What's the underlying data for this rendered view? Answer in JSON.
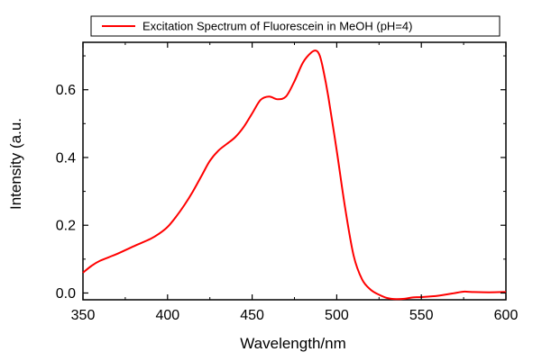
{
  "chart_data": {
    "type": "line",
    "title": "",
    "xlabel": "Wavelength/nm",
    "ylabel": "Intensity (a.u.",
    "xlim": [
      350,
      600
    ],
    "ylim": [
      -0.02,
      0.74
    ],
    "xticks": [
      350,
      400,
      450,
      500,
      550,
      600
    ],
    "xtick_labels": [
      "350",
      "400",
      "450",
      "500",
      "550",
      "600"
    ],
    "yticks": [
      0.0,
      0.2,
      0.4,
      0.6
    ],
    "ytick_labels": [
      "0.0",
      "0.2",
      "0.4",
      "0.6"
    ],
    "grid": false,
    "legend": {
      "position": "top",
      "entries": [
        "Excitation Spectrum of Fluorescein in MeOH (pH=4)"
      ]
    },
    "series": [
      {
        "name": "Excitation Spectrum of Fluorescein in MeOH (pH=4)",
        "color": "#ff0000",
        "x": [
          350,
          355,
          360,
          370,
          380,
          390,
          395,
          400,
          405,
          410,
          415,
          420,
          425,
          430,
          435,
          440,
          445,
          450,
          455,
          460,
          465,
          470,
          475,
          480,
          485,
          488,
          490,
          492,
          495,
          500,
          505,
          510,
          515,
          520,
          525,
          530,
          535,
          540,
          545,
          550,
          560,
          570,
          575,
          580,
          590,
          600
        ],
        "y": [
          0.06,
          0.08,
          0.095,
          0.115,
          0.138,
          0.16,
          0.175,
          0.195,
          0.225,
          0.26,
          0.3,
          0.345,
          0.39,
          0.42,
          0.44,
          0.46,
          0.49,
          0.53,
          0.57,
          0.58,
          0.572,
          0.58,
          0.625,
          0.68,
          0.71,
          0.715,
          0.7,
          0.66,
          0.58,
          0.42,
          0.25,
          0.11,
          0.04,
          0.01,
          -0.005,
          -0.015,
          -0.018,
          -0.017,
          -0.013,
          -0.012,
          -0.008,
          0.0,
          0.004,
          0.003,
          0.002,
          0.003
        ]
      }
    ]
  }
}
